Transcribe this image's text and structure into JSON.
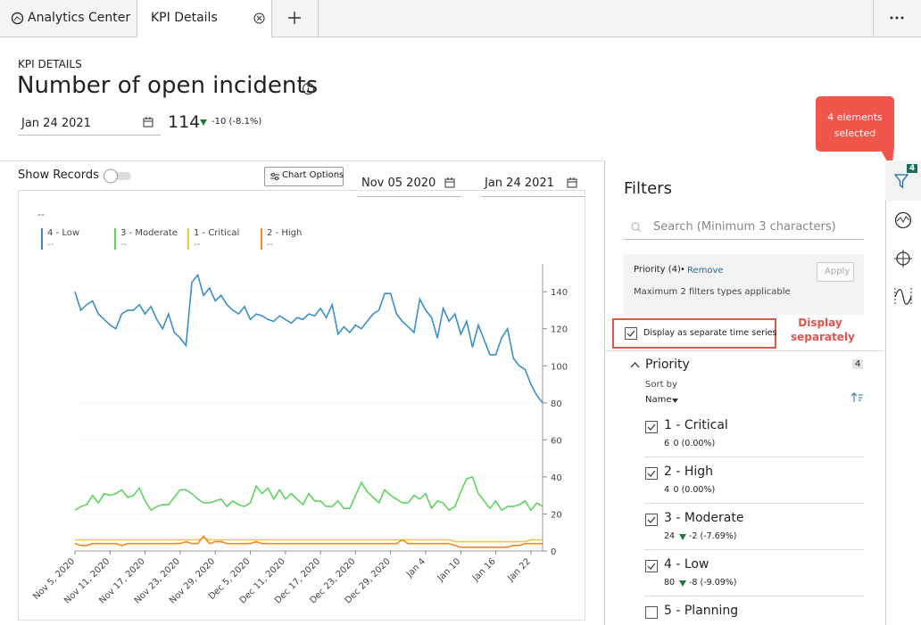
{
  "tabs": [
    "Analytics Center",
    "KPI Details"
  ],
  "header": {
    "label": "KPI DETAILS",
    "title": "Number of open incidents",
    "date": "Jan 24 2021",
    "value": 114,
    "change": "-10 (-8.1%)",
    "trend": "down"
  },
  "toolbar": {
    "show_records": "Show Records",
    "chart_options": "Chart Options",
    "start_date": "Nov 05 2020",
    "end_date": "Jan 24 2021"
  },
  "filters": {
    "title": "Filters",
    "search_placeholder": "Search (Minimum 3 characters)",
    "filter_tag": "Priority (4)",
    "remove": "Remove",
    "apply": "Apply",
    "note": "Maximum 2 filters types applicable",
    "separate_series": "Display as separate time series",
    "group": "Priority",
    "group_count": 4,
    "sort_by": "Sort by",
    "sort_field": "Name",
    "items": [
      {
        "label": "1 - Critical",
        "count": 6,
        "change": "0 (0.00%)",
        "checked": true
      },
      {
        "label": "2 - High",
        "count": 4,
        "change": "0 (0.00%)",
        "checked": true
      },
      {
        "label": "3 - Moderate",
        "count": 24,
        "change": "-2 (-7.69%)",
        "trend": "down",
        "checked": true
      },
      {
        "label": "4 - Low",
        "count": 80,
        "change": "-8 (-9.09%)",
        "trend": "down",
        "checked": true
      },
      {
        "label": "5 - Planning",
        "checked": false
      }
    ]
  },
  "annotations": {
    "callout": "4 elements selected",
    "badge": 4,
    "display_note": "Display separately"
  },
  "chart_data": {
    "type": "line",
    "title": "--",
    "categories": [
      "Nov 5, 2020",
      null,
      null,
      null,
      null,
      null,
      "Nov 11, 2020",
      null,
      null,
      null,
      null,
      null,
      "Nov 17, 2020",
      null,
      null,
      null,
      null,
      null,
      "Nov 23, 2020",
      null,
      null,
      null,
      null,
      null,
      "Nov 29, 2020",
      null,
      null,
      null,
      null,
      null,
      "Dec 5, 2020",
      null,
      null,
      null,
      null,
      null,
      "Dec 11, 2020",
      null,
      null,
      null,
      null,
      null,
      "Dec 17, 2020",
      null,
      null,
      null,
      null,
      null,
      "Dec 23, 2020",
      null,
      null,
      null,
      null,
      null,
      "Dec 29, 2020",
      null,
      null,
      null,
      null,
      null,
      "Jan 4",
      null,
      null,
      null,
      null,
      null,
      "Jan 10",
      null,
      null,
      null,
      null,
      null,
      "Jan 16",
      null,
      null,
      null,
      null,
      null,
      "Jan 22",
      null,
      null
    ],
    "ylim": [
      0,
      155
    ],
    "yticks": [
      0,
      20,
      40,
      60,
      80,
      100,
      120,
      140
    ],
    "grid": true,
    "series": [
      {
        "name": "4 - Low",
        "current": "--",
        "color": "#3a8fc8",
        "values": [
          140,
          130,
          133,
          135,
          128,
          125,
          122,
          120,
          128,
          130,
          130,
          133,
          128,
          132,
          125,
          120,
          128,
          118,
          115,
          111,
          145,
          149,
          138,
          142,
          135,
          138,
          133,
          130,
          128,
          132,
          125,
          128,
          127,
          125,
          124,
          127,
          125,
          123,
          126,
          125,
          128,
          127,
          131,
          126,
          133,
          117,
          121,
          118,
          122,
          120,
          124,
          128,
          130,
          139,
          139,
          128,
          124,
          121,
          118,
          136,
          130,
          126,
          115,
          131,
          124,
          128,
          117,
          124,
          110,
          122,
          114,
          106,
          106,
          115,
          120,
          104,
          100,
          98,
          90,
          84,
          80
        ]
      },
      {
        "name": "3 - Moderate",
        "current": "--",
        "color": "#5fd35f",
        "values": [
          22,
          24,
          25,
          30,
          26,
          31,
          30,
          31,
          33,
          29,
          30,
          34,
          27,
          22,
          24,
          25,
          25,
          29,
          33,
          33,
          31,
          28,
          26,
          26,
          27,
          28,
          24,
          27,
          25,
          24,
          26,
          35,
          31,
          34,
          28,
          33,
          28,
          31,
          28,
          25,
          31,
          27,
          27,
          24,
          24,
          27,
          23,
          23,
          30,
          37,
          32,
          29,
          26,
          33,
          30,
          28,
          26,
          26,
          30,
          28,
          31,
          23,
          27,
          26,
          22,
          24,
          32,
          39,
          40,
          31,
          27,
          23,
          27,
          22,
          24,
          24,
          25,
          27,
          22,
          26,
          24
        ]
      },
      {
        "name": "1 - Critical",
        "current": "--",
        "color": "#f5c242",
        "values": [
          6,
          6,
          6,
          6,
          6,
          6,
          6,
          6,
          6,
          6,
          6,
          6,
          6,
          6,
          6,
          6,
          6,
          6,
          6,
          6,
          6,
          6,
          7,
          6,
          6,
          6,
          6,
          6,
          6,
          6,
          6,
          6,
          6,
          6,
          6,
          6,
          6,
          6,
          6,
          6,
          6,
          6,
          6,
          6,
          6,
          6,
          6,
          6,
          6,
          6,
          6,
          6,
          6,
          6,
          6,
          6,
          6,
          6,
          6,
          6,
          6,
          6,
          6,
          6,
          6,
          5,
          5,
          5,
          5,
          5,
          5,
          5,
          5,
          5,
          5,
          5,
          5,
          5,
          6,
          6,
          6
        ]
      },
      {
        "name": "2 - High",
        "current": "--",
        "color": "#f08a24",
        "values": [
          4,
          3,
          3,
          4,
          4,
          4,
          4,
          4,
          3,
          4,
          4,
          4,
          4,
          4,
          4,
          4,
          4,
          4,
          4,
          5,
          4,
          4,
          8,
          4,
          5,
          5,
          4,
          4,
          4,
          4,
          4,
          5,
          4,
          4,
          4,
          4,
          4,
          4,
          4,
          4,
          4,
          4,
          4,
          4,
          4,
          4,
          4,
          4,
          4,
          4,
          4,
          4,
          4,
          4,
          4,
          4,
          6,
          4,
          4,
          4,
          4,
          4,
          4,
          4,
          4,
          3,
          2,
          2,
          2,
          2,
          2,
          2,
          2,
          2,
          2,
          3,
          3,
          4,
          4,
          4,
          4
        ]
      }
    ]
  }
}
